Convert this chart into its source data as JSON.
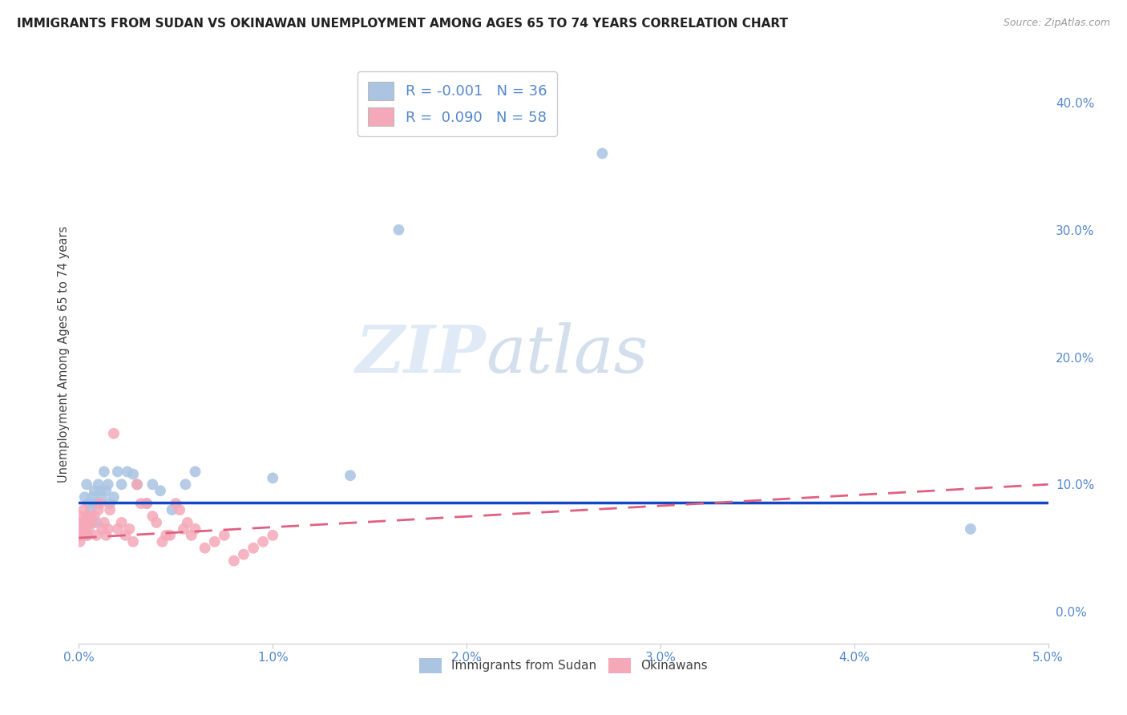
{
  "title": "IMMIGRANTS FROM SUDAN VS OKINAWAN UNEMPLOYMENT AMONG AGES 65 TO 74 YEARS CORRELATION CHART",
  "source": "Source: ZipAtlas.com",
  "ylabel": "Unemployment Among Ages 65 to 74 years",
  "xlim": [
    0.0,
    0.05
  ],
  "ylim": [
    -0.025,
    0.43
  ],
  "right_yticks": [
    0.0,
    0.1,
    0.2,
    0.3,
    0.4
  ],
  "right_yticklabels": [
    "0.0%",
    "10.0%",
    "20.0%",
    "30.0%",
    "40.0%"
  ],
  "xticks": [
    0.0,
    0.01,
    0.02,
    0.03,
    0.04,
    0.05
  ],
  "xticklabels": [
    "0.0%",
    "1.0%",
    "2.0%",
    "3.0%",
    "4.0%",
    "5.0%"
  ],
  "blue_color": "#aac4e2",
  "pink_color": "#f5a8b8",
  "trend_blue_color": "#1448c0",
  "trend_pink_color": "#e06080",
  "legend_R_blue": "-0.001",
  "legend_N_blue": "36",
  "legend_R_pink": "0.090",
  "legend_N_pink": "58",
  "watermark_zip": "ZIP",
  "watermark_atlas": "atlas",
  "blue_trend_y0": 0.086,
  "blue_trend_y1": 0.086,
  "pink_trend_y0": 0.058,
  "pink_trend_y1": 0.1,
  "blue_scatter_x": [
    0.0002,
    0.0003,
    0.0004,
    0.0004,
    0.0005,
    0.0005,
    0.0006,
    0.0007,
    0.0008,
    0.0008,
    0.0009,
    0.001,
    0.001,
    0.0011,
    0.0012,
    0.0013,
    0.0014,
    0.0015,
    0.0016,
    0.0018,
    0.002,
    0.0022,
    0.0025,
    0.0028,
    0.003,
    0.0035,
    0.0038,
    0.0042,
    0.0048,
    0.0055,
    0.006,
    0.01,
    0.014,
    0.0165,
    0.027,
    0.046
  ],
  "blue_scatter_y": [
    0.07,
    0.09,
    0.06,
    0.1,
    0.075,
    0.085,
    0.08,
    0.09,
    0.085,
    0.095,
    0.07,
    0.085,
    0.1,
    0.095,
    0.09,
    0.11,
    0.095,
    0.1,
    0.085,
    0.09,
    0.11,
    0.1,
    0.11,
    0.108,
    0.1,
    0.085,
    0.1,
    0.095,
    0.08,
    0.1,
    0.11,
    0.105,
    0.107,
    0.3,
    0.36,
    0.065
  ],
  "pink_scatter_x": [
    0.0,
    1e-05,
    2e-05,
    3e-05,
    4e-05,
    5e-05,
    7e-05,
    0.0001,
    0.00012,
    0.00015,
    0.00018,
    0.00022,
    0.00025,
    0.0003,
    0.00035,
    0.0004,
    0.00045,
    0.0005,
    0.00055,
    0.0006,
    0.0007,
    0.0008,
    0.0009,
    0.001,
    0.0011,
    0.0012,
    0.0013,
    0.0014,
    0.0015,
    0.0016,
    0.0018,
    0.002,
    0.0022,
    0.0024,
    0.0026,
    0.0028,
    0.003,
    0.0032,
    0.0035,
    0.0038,
    0.004,
    0.0043,
    0.0045,
    0.0047,
    0.005,
    0.0052,
    0.0054,
    0.0056,
    0.0058,
    0.006,
    0.0065,
    0.007,
    0.0075,
    0.008,
    0.0085,
    0.009,
    0.0095,
    0.01
  ],
  "pink_scatter_y": [
    0.06,
    0.07,
    0.06,
    0.07,
    0.065,
    0.055,
    0.06,
    0.075,
    0.065,
    0.07,
    0.065,
    0.07,
    0.08,
    0.07,
    0.065,
    0.075,
    0.06,
    0.065,
    0.07,
    0.075,
    0.07,
    0.075,
    0.06,
    0.08,
    0.085,
    0.065,
    0.07,
    0.06,
    0.065,
    0.08,
    0.14,
    0.065,
    0.07,
    0.06,
    0.065,
    0.055,
    0.1,
    0.085,
    0.085,
    0.075,
    0.07,
    0.055,
    0.06,
    0.06,
    0.085,
    0.08,
    0.065,
    0.07,
    0.06,
    0.065,
    0.05,
    0.055,
    0.06,
    0.04,
    0.045,
    0.05,
    0.055,
    0.06
  ],
  "grid_color": "#d5d5d5",
  "background_color": "#ffffff",
  "title_fontsize": 11,
  "tick_label_color": "#5588cc"
}
